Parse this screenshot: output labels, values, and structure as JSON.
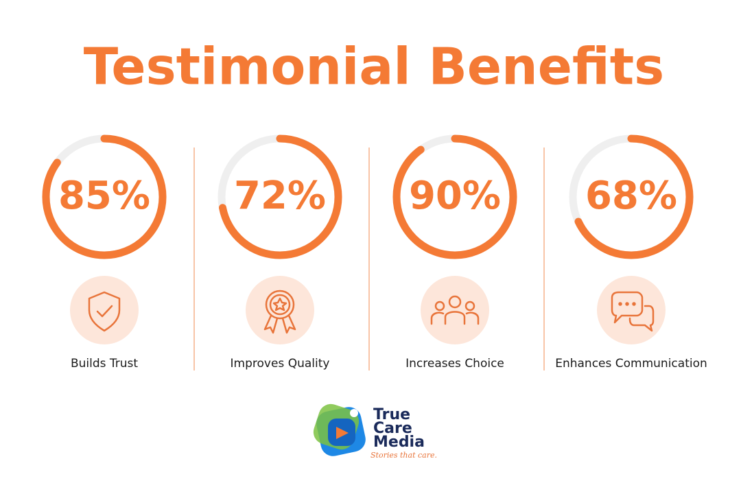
{
  "title": "Testimonial Benefits",
  "items": [
    {
      "value": 85,
      "value_label": "85%",
      "label": "Builds Trust"
    },
    {
      "value": 72,
      "value_label": "72%",
      "label": "Improves Quality"
    },
    {
      "value": 90,
      "value_label": "90%",
      "label": "Increases Choice"
    },
    {
      "value": 68,
      "value_label": "68%",
      "label": "Enhances Communication"
    }
  ],
  "logo": {
    "lines": [
      "True",
      "Care",
      "Media"
    ],
    "tagline": "Stories that care."
  }
}
